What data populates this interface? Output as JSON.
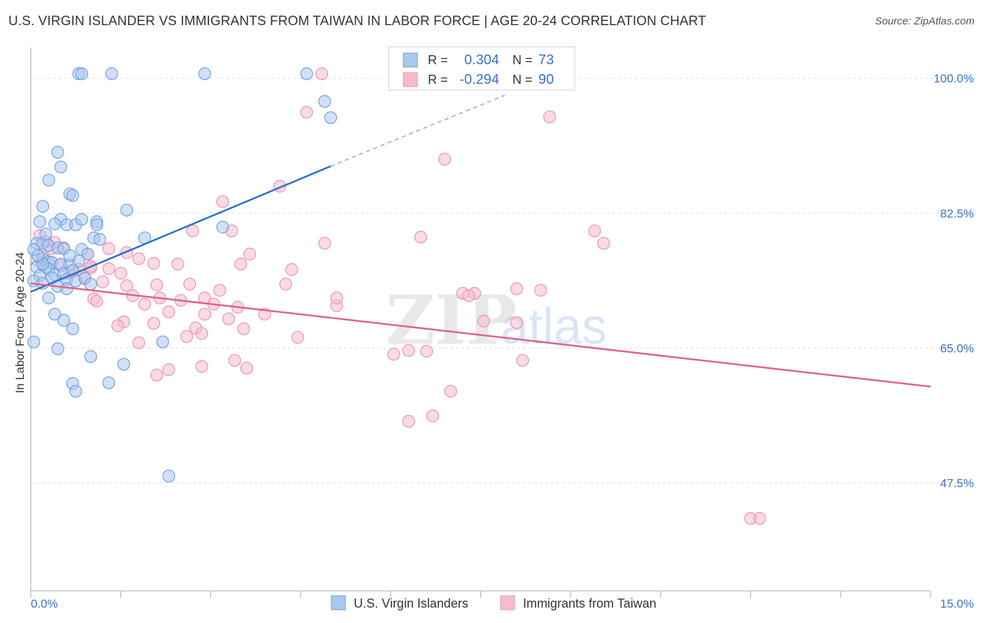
{
  "title": "U.S. VIRGIN ISLANDER VS IMMIGRANTS FROM TAIWAN IN LABOR FORCE | AGE 20-24 CORRELATION CHART",
  "source": "Source: ZipAtlas.com",
  "watermark": {
    "zip": "ZIP",
    "atlas": "atlas"
  },
  "colors": {
    "blue_fill": "#a9c8f0",
    "blue_stroke": "#6f9fdc",
    "blue_line": "#2b6fcf",
    "pink_fill": "#f6bccd",
    "pink_stroke": "#ea93ae",
    "pink_line": "#e0608a",
    "axis_label": "#3a72c8",
    "grid": "#dddddd"
  },
  "legend": {
    "rows": [
      {
        "r_label": "R =",
        "r_value": "0.304",
        "n_label": "N =",
        "n_value": "73"
      },
      {
        "r_label": "R =",
        "r_value": "-0.294",
        "n_label": "N =",
        "n_value": "90"
      }
    ]
  },
  "chart_data": {
    "type": "scatter",
    "title": "U.S. VIRGIN ISLANDER VS IMMIGRANTS FROM TAIWAN IN LABOR FORCE | AGE 20-24 CORRELATION CHART",
    "xlabel": "",
    "ylabel": "In Labor Force | Age 20-24",
    "xlim": [
      0,
      15
    ],
    "ylim": [
      33.5,
      104
    ],
    "x_tick_labels": [
      "0.0%",
      "15.0%"
    ],
    "y_ticks": [
      47.5,
      65.0,
      82.5,
      100.0
    ],
    "y_tick_labels": [
      "47.5%",
      "65.0%",
      "82.5%",
      "100.0%"
    ],
    "grid": true,
    "legend_position": "top-center",
    "series": [
      {
        "name": "U.S. Virgin Islanders",
        "R": 0.304,
        "N": 73,
        "trend": {
          "x": [
            0.0,
            5.0
          ],
          "y": [
            72.3,
            88.6
          ],
          "dashed_to": [
            7.9,
            97.8
          ]
        },
        "points": [
          [
            0.8,
            100.6
          ],
          [
            0.85,
            100.6
          ],
          [
            1.35,
            100.6
          ],
          [
            2.9,
            100.6
          ],
          [
            4.6,
            100.6
          ],
          [
            4.9,
            97
          ],
          [
            5.0,
            94.9
          ],
          [
            0.45,
            90.4
          ],
          [
            0.5,
            88.5
          ],
          [
            0.3,
            86.8
          ],
          [
            0.65,
            85
          ],
          [
            0.7,
            84.8
          ],
          [
            0.2,
            83.4
          ],
          [
            1.6,
            82.9
          ],
          [
            0.15,
            81.4
          ],
          [
            0.5,
            81.7
          ],
          [
            0.4,
            81.1
          ],
          [
            0.6,
            81
          ],
          [
            0.75,
            81
          ],
          [
            0.85,
            81.7
          ],
          [
            1.1,
            81.4
          ],
          [
            1.1,
            81
          ],
          [
            3.2,
            80.7
          ],
          [
            1.9,
            79.3
          ],
          [
            1.05,
            79.3
          ],
          [
            1.15,
            79.1
          ],
          [
            0.1,
            78.6
          ],
          [
            0.2,
            78.6
          ],
          [
            0.3,
            78.3
          ],
          [
            0.45,
            78
          ],
          [
            0.55,
            77.9
          ],
          [
            0.05,
            77.8
          ],
          [
            0.85,
            77.8
          ],
          [
            0.95,
            77.2
          ],
          [
            0.2,
            76.6
          ],
          [
            0.3,
            76.2
          ],
          [
            0.35,
            76.1
          ],
          [
            0.5,
            75.9
          ],
          [
            0.65,
            75.8
          ],
          [
            0.8,
            76.3
          ],
          [
            0.1,
            75.5
          ],
          [
            0.25,
            75.5
          ],
          [
            0.3,
            75.2
          ],
          [
            0.4,
            74.5
          ],
          [
            0.55,
            74.7
          ],
          [
            0.7,
            75.1
          ],
          [
            0.15,
            74.4
          ],
          [
            0.35,
            74.1
          ],
          [
            0.6,
            73.9
          ],
          [
            0.75,
            73.7
          ],
          [
            0.9,
            74.1
          ],
          [
            0.05,
            73.7
          ],
          [
            0.2,
            73.4
          ],
          [
            1.0,
            73.3
          ],
          [
            0.45,
            73
          ],
          [
            0.6,
            72.7
          ],
          [
            0.3,
            71.5
          ],
          [
            0.4,
            69.4
          ],
          [
            0.55,
            68.6
          ],
          [
            0.7,
            67.5
          ],
          [
            2.2,
            65.8
          ],
          [
            0.45,
            64.9
          ],
          [
            0.05,
            65.8
          ],
          [
            1.0,
            63.9
          ],
          [
            1.55,
            62.9
          ],
          [
            0.7,
            60.4
          ],
          [
            0.75,
            59.4
          ],
          [
            1.3,
            60.5
          ],
          [
            2.3,
            48.4
          ],
          [
            0.2,
            75.9
          ],
          [
            0.12,
            77
          ],
          [
            0.25,
            79.8
          ],
          [
            0.65,
            77
          ]
        ]
      },
      {
        "name": "Immigrants from Taiwan",
        "R": -0.294,
        "N": 90,
        "trend": {
          "x": [
            0.0,
            15.0
          ],
          "y": [
            73.4,
            60.0
          ]
        },
        "points": [
          [
            4.85,
            100.6
          ],
          [
            4.6,
            95.6
          ],
          [
            8.65,
            95
          ],
          [
            6.9,
            89.5
          ],
          [
            4.15,
            86
          ],
          [
            3.2,
            84
          ],
          [
            2.7,
            80.2
          ],
          [
            3.35,
            80.2
          ],
          [
            9.4,
            80.2
          ],
          [
            6.5,
            79.4
          ],
          [
            4.9,
            78.6
          ],
          [
            9.55,
            78.6
          ],
          [
            0.15,
            79.6
          ],
          [
            0.25,
            78.8
          ],
          [
            0.55,
            78
          ],
          [
            1.3,
            77.9
          ],
          [
            1.6,
            77.4
          ],
          [
            3.65,
            77.2
          ],
          [
            1.8,
            76.6
          ],
          [
            2.05,
            76
          ],
          [
            2.45,
            75.9
          ],
          [
            3.5,
            75.9
          ],
          [
            0.1,
            76.5
          ],
          [
            0.2,
            75.9
          ],
          [
            0.5,
            75.7
          ],
          [
            0.8,
            75.2
          ],
          [
            1.0,
            75.4
          ],
          [
            1.3,
            75.3
          ],
          [
            1.5,
            74.7
          ],
          [
            4.35,
            75.2
          ],
          [
            0.65,
            74.7
          ],
          [
            0.9,
            74
          ],
          [
            1.2,
            73.6
          ],
          [
            1.6,
            73.1
          ],
          [
            2.1,
            73.2
          ],
          [
            2.65,
            73.3
          ],
          [
            3.15,
            72.5
          ],
          [
            4.25,
            73.3
          ],
          [
            8.1,
            72.7
          ],
          [
            8.5,
            72.5
          ],
          [
            1.05,
            71.4
          ],
          [
            1.7,
            71.8
          ],
          [
            2.15,
            71.5
          ],
          [
            2.5,
            71.2
          ],
          [
            2.9,
            71.5
          ],
          [
            3.05,
            70.7
          ],
          [
            3.45,
            70.3
          ],
          [
            5.1,
            70.5
          ],
          [
            7.2,
            72.1
          ],
          [
            7.4,
            72.1
          ],
          [
            7.3,
            71.8
          ],
          [
            0.35,
            77.9
          ],
          [
            1.1,
            71.1
          ],
          [
            1.9,
            70.7
          ],
          [
            2.3,
            69.7
          ],
          [
            2.9,
            69.4
          ],
          [
            3.9,
            69.4
          ],
          [
            5.1,
            71.5
          ],
          [
            7.55,
            68.5
          ],
          [
            1.55,
            68.4
          ],
          [
            2.05,
            68.2
          ],
          [
            2.75,
            67.6
          ],
          [
            3.55,
            67.5
          ],
          [
            4.45,
            66.4
          ],
          [
            8.1,
            68.3
          ],
          [
            0.2,
            76.9
          ],
          [
            1.0,
            75.6
          ],
          [
            1.8,
            65.7
          ],
          [
            3.4,
            63.4
          ],
          [
            2.3,
            62.2
          ],
          [
            2.85,
            62.6
          ],
          [
            2.1,
            61.5
          ],
          [
            3.6,
            62.4
          ],
          [
            6.05,
            64.2
          ],
          [
            6.3,
            64.7
          ],
          [
            6.6,
            64.6
          ],
          [
            8.2,
            63.4
          ],
          [
            7.0,
            59.4
          ],
          [
            6.3,
            55.5
          ],
          [
            6.7,
            56.2
          ],
          [
            12.0,
            42.9
          ],
          [
            12.15,
            42.9
          ],
          [
            0.25,
            76.3
          ],
          [
            0.7,
            74.9
          ],
          [
            2.85,
            66.9
          ],
          [
            1.45,
            67.9
          ],
          [
            0.95,
            77.2
          ],
          [
            3.3,
            68.8
          ],
          [
            0.4,
            78.7
          ],
          [
            2.6,
            66.5
          ]
        ]
      }
    ]
  },
  "bottom_legend": {
    "items": [
      {
        "label": "U.S. Virgin Islanders"
      },
      {
        "label": "Immigrants from Taiwan"
      }
    ]
  }
}
